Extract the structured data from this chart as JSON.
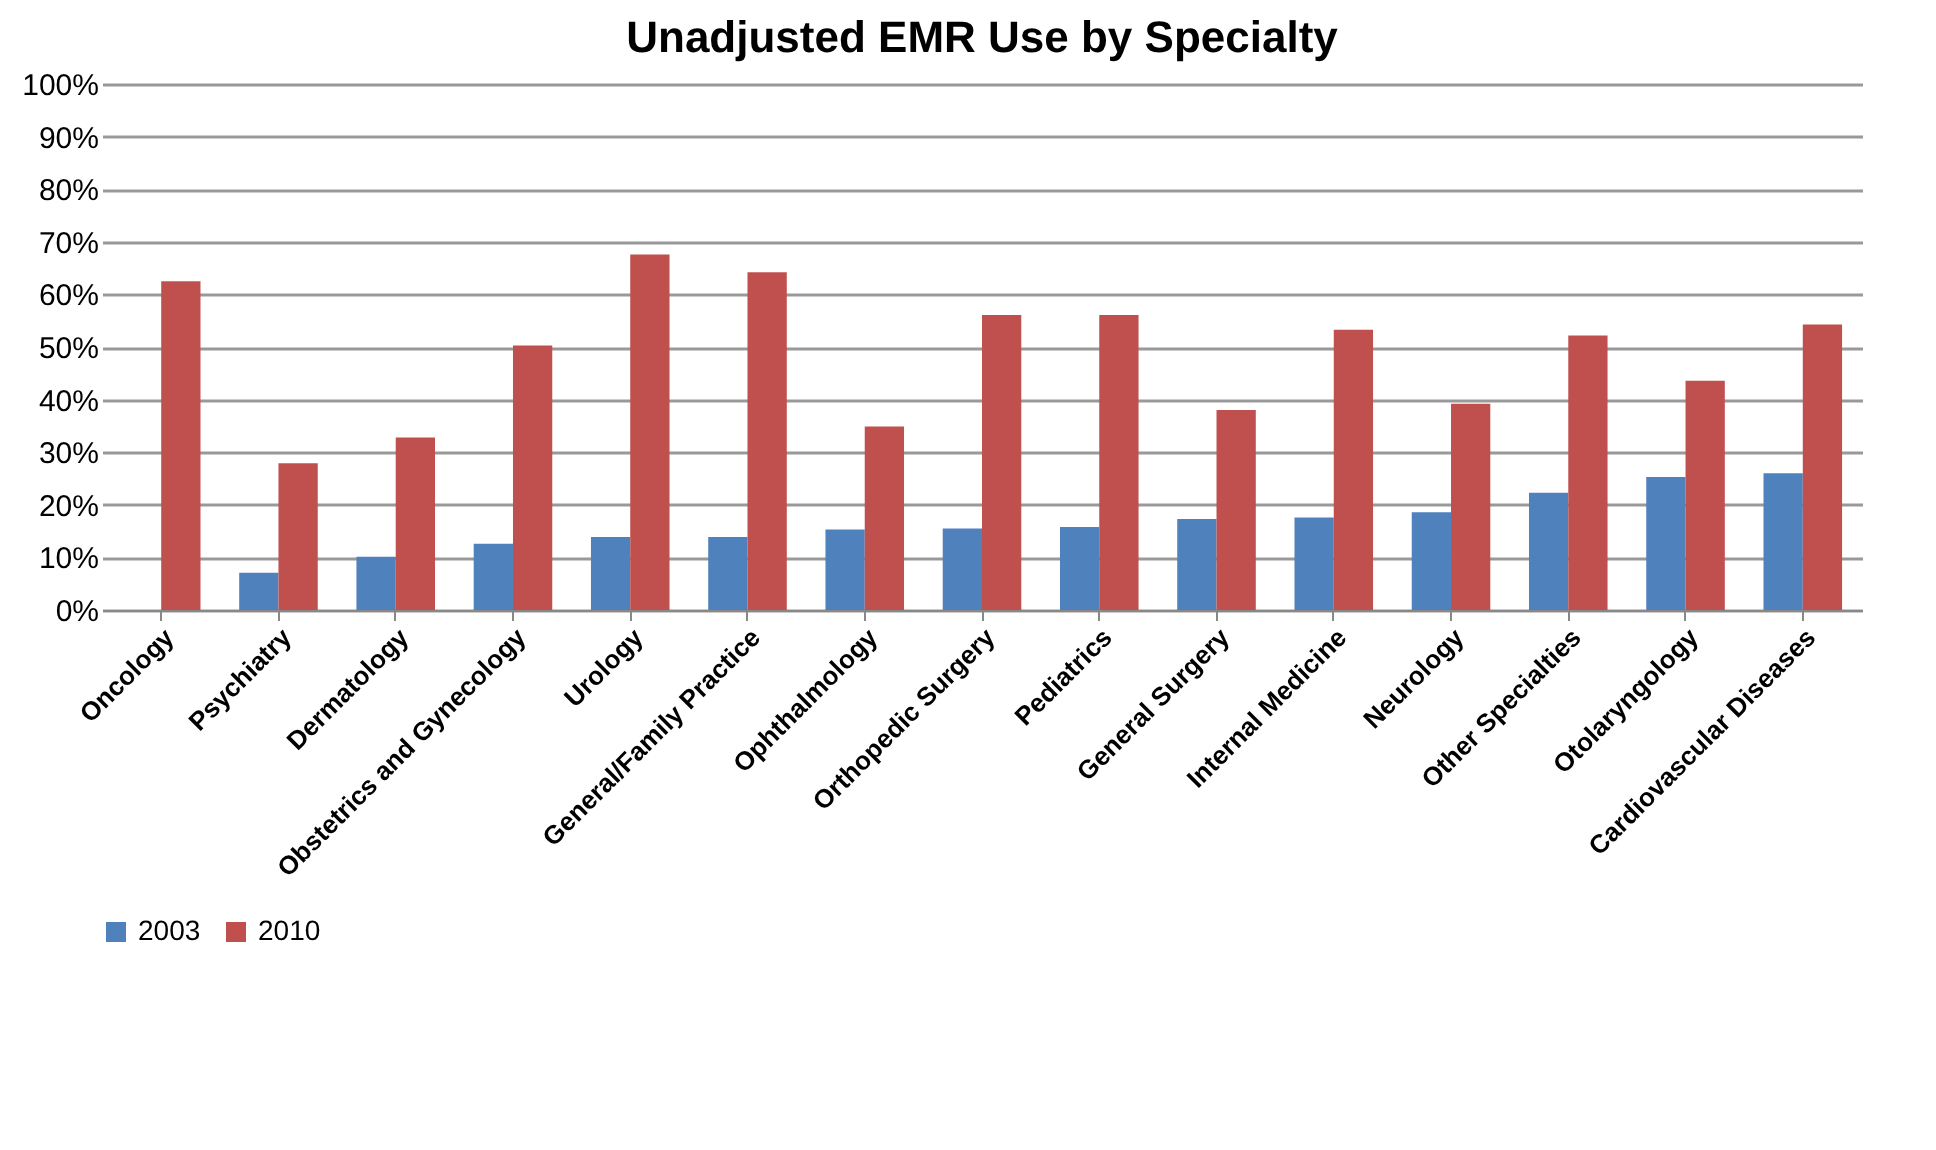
{
  "chart_data": {
    "type": "bar",
    "title": "Unadjusted EMR Use by Specialty",
    "categories": [
      "Oncology",
      "Psychiatry",
      "Dermatology",
      "Obstetrics and Gynecology",
      "Urology",
      "General/Family Practice",
      "Ophthalmology",
      "Orthopedic Surgery",
      "Pediatrics",
      "General Surgery",
      "Internal Medicine",
      "Neurology",
      "Other Specialties",
      "Otolaryngology",
      "Cardiovascular Diseases"
    ],
    "series": [
      {
        "name": "2003",
        "color": "#4f81bd",
        "values": [
          null,
          7.1,
          10.1,
          12.6,
          13.9,
          13.9,
          15.3,
          15.5,
          15.8,
          17.3,
          17.6,
          18.6,
          22.3,
          25.3,
          26.0
        ]
      },
      {
        "name": "2010",
        "color": "#c0504d",
        "values": [
          62.5,
          27.9,
          32.8,
          50.3,
          67.6,
          64.2,
          34.9,
          56.1,
          56.1,
          38.0,
          53.3,
          39.2,
          52.2,
          43.6,
          54.3
        ]
      }
    ],
    "ylim": [
      0,
      100
    ],
    "yticks": [
      {
        "value": 0,
        "label": "0%"
      },
      {
        "value": 10,
        "label": "10%"
      },
      {
        "value": 20,
        "label": "20%"
      },
      {
        "value": 30,
        "label": "30%"
      },
      {
        "value": 40,
        "label": "40%"
      },
      {
        "value": 50,
        "label": "50%"
      },
      {
        "value": 60,
        "label": "60%"
      },
      {
        "value": 70,
        "label": "70%"
      },
      {
        "value": 80,
        "label": "80%"
      },
      {
        "value": 90,
        "label": "90%"
      },
      {
        "value": 100,
        "label": "100%"
      }
    ],
    "grid": "y",
    "legend": "bottom"
  }
}
